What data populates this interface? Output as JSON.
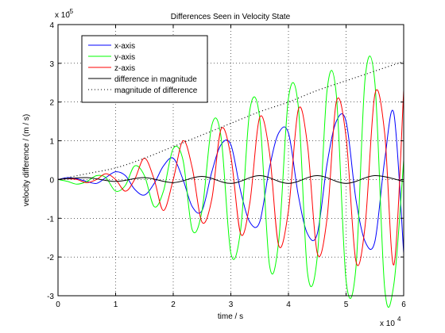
{
  "chart_data": {
    "type": "line",
    "title": "Differences Seen in Velocity State",
    "xlabel": "time / s",
    "ylabel": "velocity difference / (m / s)",
    "x_exponent_label": "x 10",
    "x_exponent": "4",
    "y_exponent_label": "x 10",
    "y_exponent": "-5",
    "xlim": [
      0,
      6
    ],
    "ylim": [
      -3,
      4
    ],
    "x_ticks": [
      "0",
      "1",
      "2",
      "3",
      "4",
      "5",
      "6"
    ],
    "y_ticks": [
      "-3",
      "-2",
      "-1",
      "0",
      "1",
      "2",
      "3",
      "4"
    ],
    "grid": true,
    "legend_position": "top-left",
    "series": [
      {
        "name": "x-axis",
        "color": "#0000ff",
        "style": "solid",
        "x": [
          0,
          0.17,
          0.33,
          0.5,
          0.67,
          0.83,
          1,
          1.17,
          1.33,
          1.5,
          1.67,
          1.83,
          2,
          2.17,
          2.33,
          2.5,
          2.67,
          2.83,
          3,
          3.17,
          3.33,
          3.5,
          3.67,
          3.83,
          4,
          4.17,
          4.33,
          4.5,
          4.67,
          4.83,
          5,
          5.17,
          5.33,
          5.5,
          5.67,
          5.83,
          6
        ],
        "y": [
          0,
          0.05,
          0.02,
          -0.05,
          -0.1,
          0.05,
          0.2,
          0.1,
          -0.25,
          -0.4,
          -0.1,
          0.35,
          0.55,
          0,
          -0.7,
          -0.8,
          0.2,
          0.9,
          0.9,
          -0.3,
          -1.1,
          -1.1,
          0.3,
          1.2,
          1.2,
          -0.4,
          -1.4,
          -1.4,
          0.4,
          1.5,
          1.5,
          -0.5,
          -1.6,
          -1.6,
          0.5,
          1.7,
          -1.9
        ]
      },
      {
        "name": "y-axis",
        "color": "#00ff00",
        "style": "solid",
        "x": [
          0,
          0.17,
          0.33,
          0.5,
          0.67,
          0.83,
          1,
          1.17,
          1.33,
          1.5,
          1.67,
          1.83,
          2,
          2.17,
          2.33,
          2.5,
          2.67,
          2.83,
          3,
          3.17,
          3.33,
          3.5,
          3.67,
          3.83,
          4,
          4.17,
          4.33,
          4.5,
          4.67,
          4.83,
          5,
          5.17,
          5.33,
          5.5,
          5.67,
          5.83,
          6
        ],
        "y": [
          0,
          -0.05,
          -0.12,
          -0.05,
          0.1,
          0.05,
          -0.3,
          -0.15,
          0.35,
          0.1,
          -0.7,
          -0.3,
          0.8,
          0.5,
          -1.3,
          -0.8,
          1.4,
          1.1,
          -1.9,
          -1.3,
          1.8,
          1.6,
          -2.2,
          -1.6,
          2.1,
          1.9,
          -2.4,
          -2.0,
          2.3,
          2.2,
          -2.6,
          -2.3,
          2.6,
          2.5,
          -2.8,
          -2.7,
          0.5
        ]
      },
      {
        "name": "z-axis",
        "color": "#ff0000",
        "style": "solid",
        "x": [
          0,
          0.17,
          0.33,
          0.5,
          0.67,
          0.83,
          1,
          1.17,
          1.33,
          1.5,
          1.67,
          1.83,
          2,
          2.17,
          2.33,
          2.5,
          2.67,
          2.83,
          3,
          3.17,
          3.33,
          3.5,
          3.67,
          3.83,
          4,
          4.17,
          4.33,
          4.5,
          4.67,
          4.83,
          5,
          5.17,
          5.33,
          5.5,
          5.67,
          5.83,
          6
        ],
        "y": [
          0,
          0.02,
          0,
          -0.08,
          0,
          0.15,
          0,
          -0.3,
          0,
          0.55,
          0,
          -0.8,
          0,
          1.0,
          0.3,
          -1.1,
          -0.5,
          1.3,
          0.6,
          -1.4,
          -0.6,
          1.6,
          0.7,
          -1.7,
          -0.8,
          1.8,
          0.9,
          -1.9,
          -1.0,
          2.0,
          1.1,
          -2.1,
          -1.2,
          2.2,
          1.2,
          -2.2,
          2.3
        ]
      },
      {
        "name": "difference in magnitude",
        "color": "#000000",
        "style": "solid",
        "x": [
          0,
          0.5,
          1,
          1.5,
          2,
          2.5,
          3,
          3.5,
          4,
          4.5,
          5,
          5.5,
          6
        ],
        "y": [
          0,
          0.05,
          -0.05,
          0.05,
          -0.08,
          0.08,
          -0.1,
          0.1,
          -0.1,
          0.1,
          -0.1,
          0.1,
          -0.05
        ]
      },
      {
        "name": "magnitude of difference",
        "color": "#000000",
        "style": "dotted",
        "x": [
          0,
          0.5,
          1,
          1.5,
          2,
          2.5,
          3,
          3.5,
          4,
          4.5,
          5,
          5.5,
          6
        ],
        "y": [
          0,
          0.15,
          0.3,
          0.55,
          0.85,
          1.15,
          1.45,
          1.75,
          2.0,
          2.3,
          2.55,
          2.8,
          3.05
        ]
      }
    ]
  }
}
